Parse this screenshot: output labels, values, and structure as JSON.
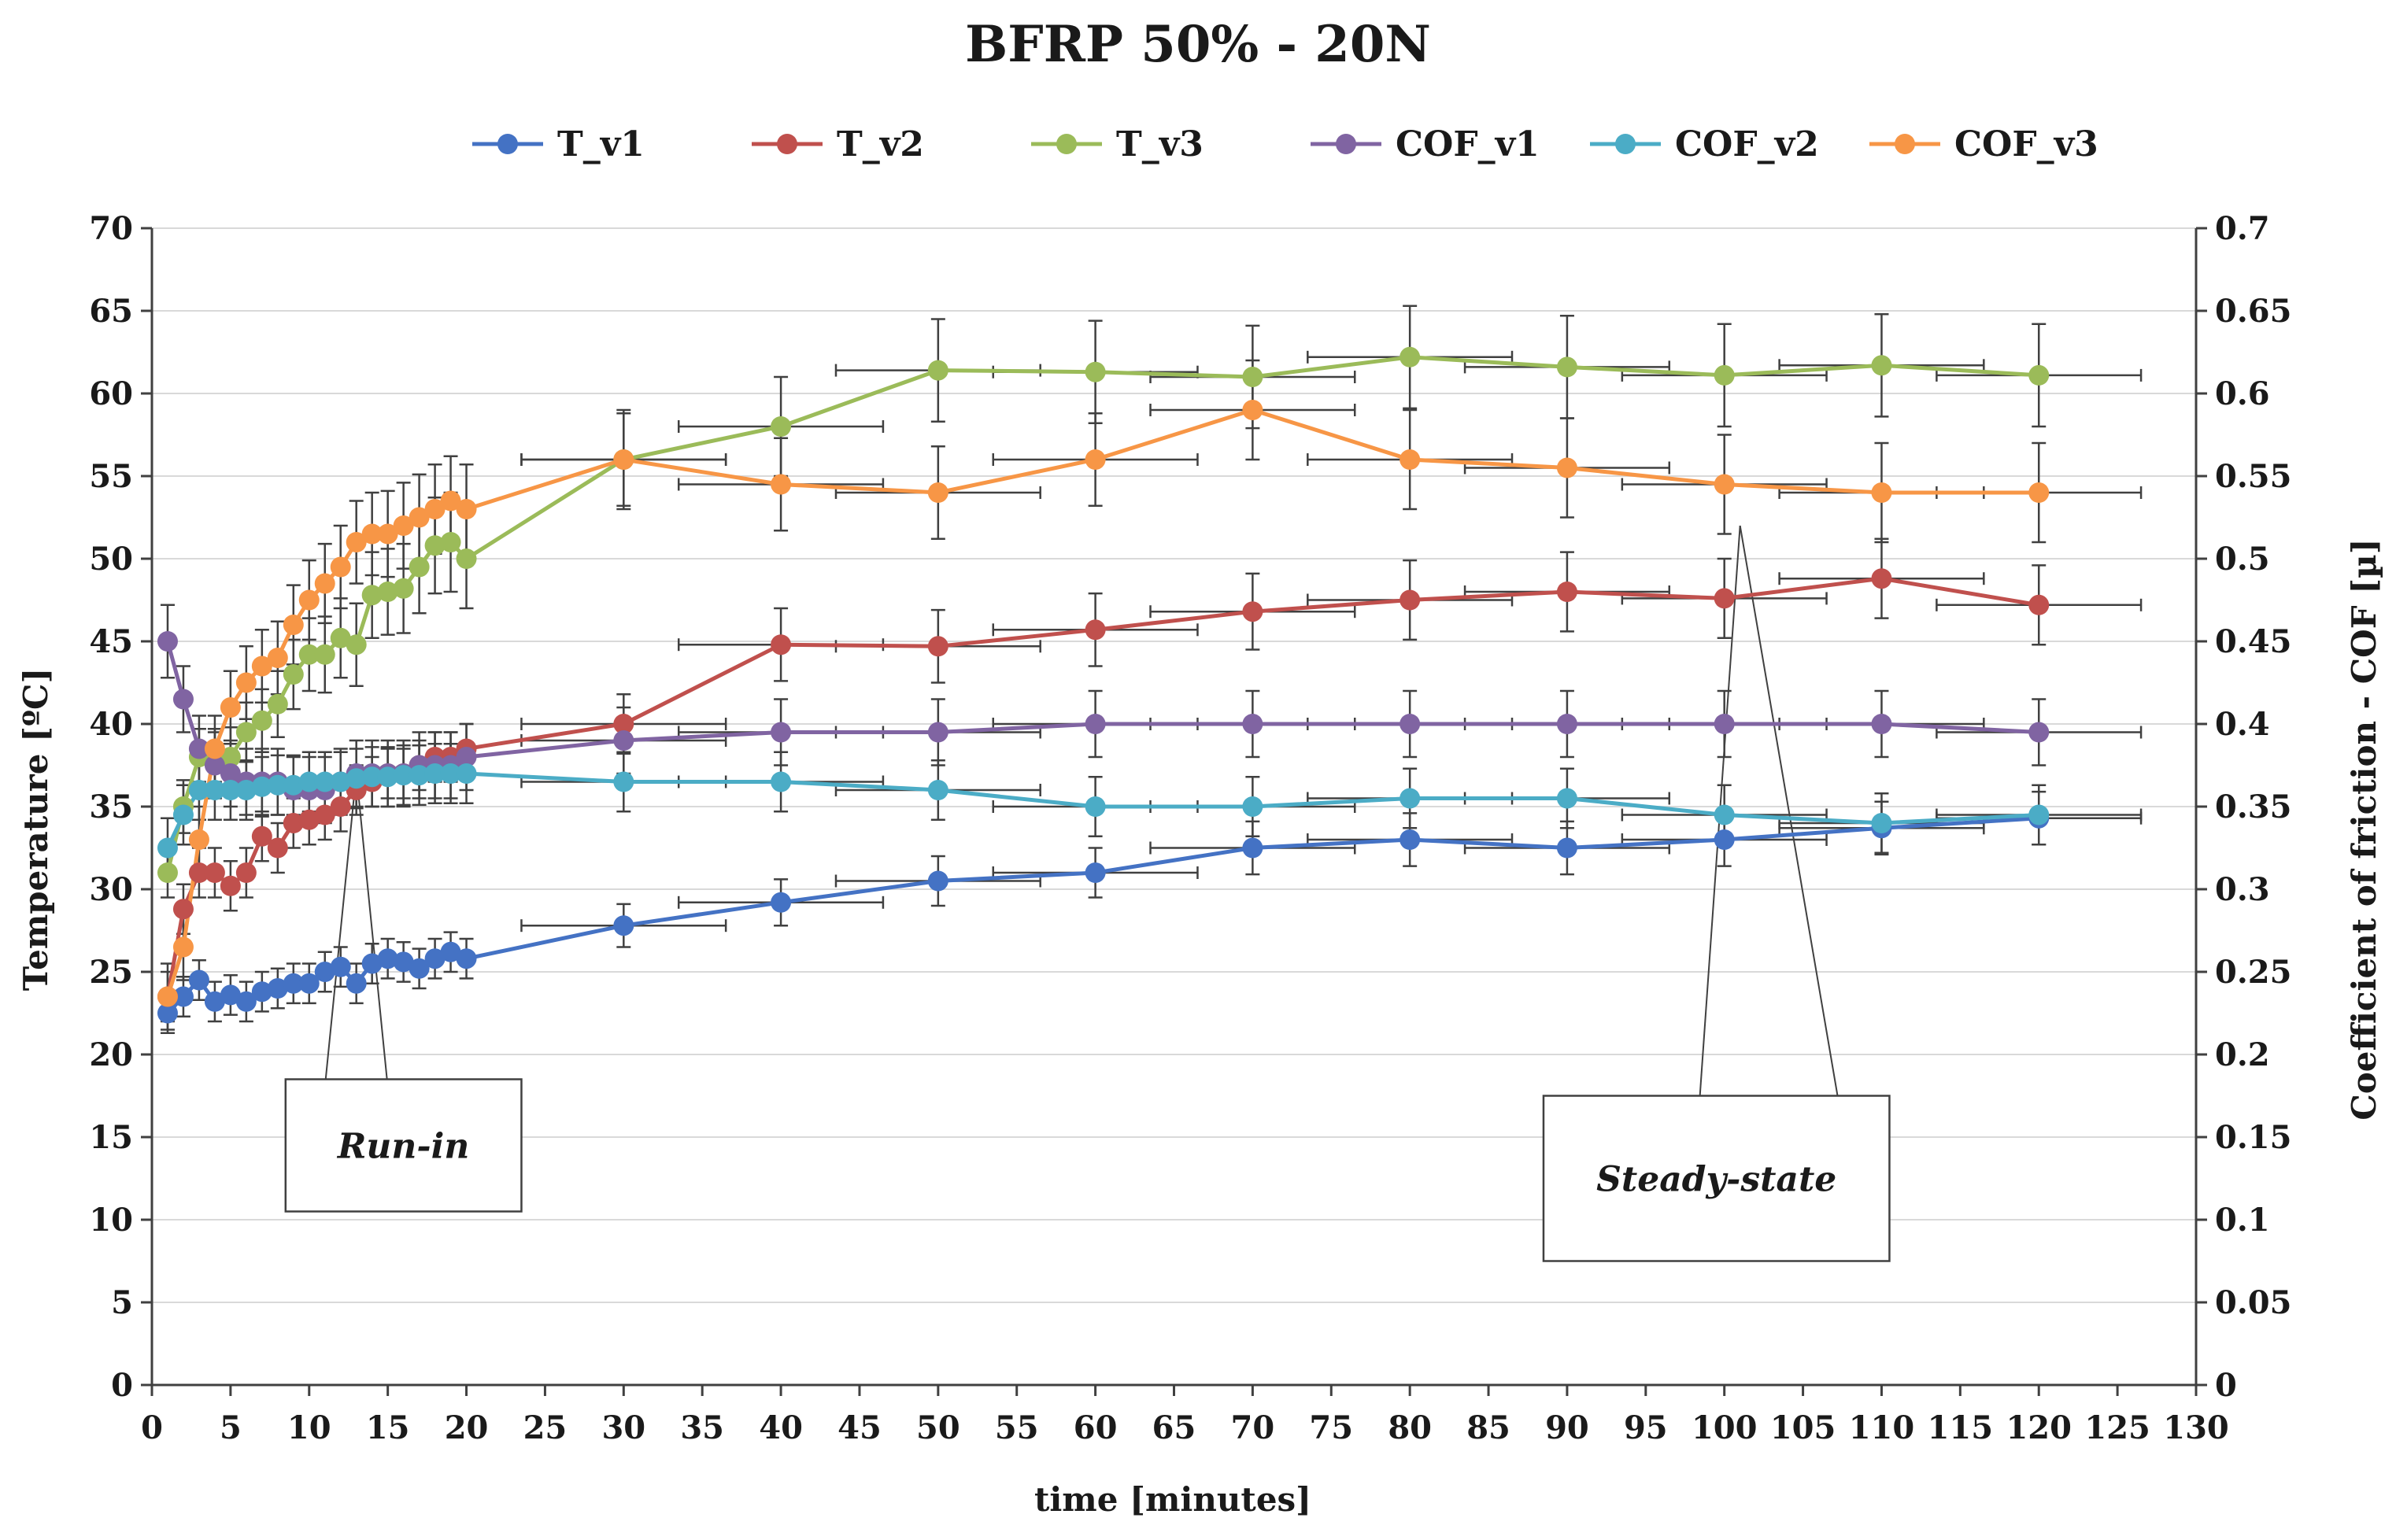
{
  "chart_data": {
    "type": "line",
    "title": "BFRP 50% - 20N",
    "xlabel": "time [minutes]",
    "ylabel": "Temperature [ºC]",
    "y2label": "Coefficient of friction - COF [µ]",
    "xlim": [
      0,
      130
    ],
    "ylim": [
      0,
      70
    ],
    "y2lim": [
      0,
      0.7
    ],
    "x_ticks": [
      "0",
      "5",
      "10",
      "15",
      "20",
      "25",
      "30",
      "35",
      "40",
      "45",
      "50",
      "55",
      "60",
      "65",
      "70",
      "75",
      "80",
      "85",
      "90",
      "95",
      "100",
      "105",
      "110",
      "115",
      "120",
      "125",
      "130"
    ],
    "y_ticks": [
      "0",
      "5",
      "10",
      "15",
      "20",
      "25",
      "30",
      "35",
      "40",
      "45",
      "50",
      "55",
      "60",
      "65",
      "70"
    ],
    "y2_ticks": [
      "0",
      "0.05",
      "0.1",
      "0.15",
      "0.2",
      "0.25",
      "0.3",
      "0.35",
      "0.4",
      "0.45",
      "0.5",
      "0.55",
      "0.6",
      "0.65",
      "0.7"
    ],
    "grid": "horizontal",
    "legend_position": "top",
    "series": [
      {
        "name": "T_v1",
        "axis": "left",
        "color": "#4472c4",
        "x": [
          1,
          2,
          3,
          4,
          5,
          6,
          7,
          8,
          9,
          10,
          11,
          12,
          13,
          14,
          15,
          16,
          17,
          18,
          19,
          20,
          30,
          40,
          50,
          60,
          70,
          80,
          90,
          100,
          110,
          120
        ],
        "y": [
          22.5,
          23.5,
          24.5,
          23.2,
          23.6,
          23.2,
          23.8,
          24.0,
          24.3,
          24.3,
          25.0,
          25.3,
          24.3,
          25.5,
          25.8,
          25.6,
          25.2,
          25.8,
          26.2,
          25.8,
          27.8,
          29.2,
          30.5,
          31.0,
          32.5,
          33.0,
          32.5,
          33.0,
          33.7,
          34.3
        ],
        "err": [
          1.2,
          1.2,
          1.2,
          1.2,
          1.2,
          1.2,
          1.2,
          1.2,
          1.2,
          1.2,
          1.2,
          1.2,
          1.2,
          1.2,
          1.2,
          1.2,
          1.2,
          1.2,
          1.2,
          1.2,
          1.3,
          1.4,
          1.5,
          1.5,
          1.6,
          1.6,
          1.6,
          1.6,
          1.6,
          1.6
        ]
      },
      {
        "name": "T_v2",
        "axis": "left",
        "color": "#c0504d",
        "x": [
          1,
          2,
          3,
          4,
          5,
          6,
          7,
          8,
          9,
          10,
          11,
          12,
          13,
          14,
          15,
          16,
          17,
          18,
          19,
          20,
          30,
          40,
          50,
          60,
          70,
          80,
          90,
          100,
          110,
          120
        ],
        "y": [
          23.5,
          28.8,
          31.0,
          31.0,
          30.2,
          31.0,
          33.2,
          32.5,
          34.0,
          34.2,
          34.5,
          35.0,
          36.0,
          36.5,
          37.0,
          37.0,
          37.5,
          38.0,
          38.0,
          38.5,
          40.0,
          44.8,
          44.7,
          45.7,
          46.8,
          47.5,
          48.0,
          47.6,
          48.8,
          47.2
        ],
        "err": [
          1.5,
          1.5,
          1.5,
          1.5,
          1.5,
          1.5,
          1.5,
          1.5,
          1.5,
          1.5,
          1.5,
          1.5,
          1.5,
          1.5,
          1.5,
          1.5,
          1.5,
          1.5,
          1.5,
          1.5,
          1.8,
          2.2,
          2.2,
          2.2,
          2.3,
          2.4,
          2.4,
          2.4,
          2.4,
          2.4
        ]
      },
      {
        "name": "T_v3",
        "axis": "left",
        "color": "#9bbb59",
        "x": [
          1,
          2,
          3,
          4,
          5,
          6,
          7,
          8,
          9,
          10,
          11,
          12,
          13,
          14,
          15,
          16,
          17,
          18,
          19,
          20,
          30,
          40,
          50,
          60,
          70,
          80,
          90,
          100,
          110,
          120
        ],
        "y": [
          31.0,
          35.0,
          38.0,
          38.0,
          38.0,
          39.5,
          40.2,
          41.2,
          43.0,
          44.2,
          44.2,
          45.2,
          44.8,
          47.8,
          48.0,
          48.2,
          49.5,
          50.8,
          51.0,
          50.0,
          56.0,
          58.0,
          61.4,
          61.3,
          61.0,
          62.2,
          61.6,
          61.1,
          61.7,
          61.1
        ],
        "err": [
          1.5,
          1.6,
          1.7,
          1.7,
          1.8,
          1.8,
          1.9,
          2.0,
          2.1,
          2.2,
          2.3,
          2.4,
          2.5,
          2.6,
          2.6,
          2.7,
          2.8,
          2.9,
          3.0,
          3.0,
          3.0,
          3.0,
          3.1,
          3.1,
          3.1,
          3.1,
          3.1,
          3.1,
          3.1,
          3.1
        ]
      },
      {
        "name": "COF_v1",
        "axis": "right",
        "color": "#8064a2",
        "x": [
          1,
          2,
          3,
          4,
          5,
          6,
          7,
          8,
          9,
          10,
          11,
          12,
          13,
          14,
          15,
          16,
          17,
          18,
          19,
          20,
          30,
          40,
          50,
          60,
          70,
          80,
          90,
          100,
          110,
          120
        ],
        "y": [
          0.45,
          0.415,
          0.385,
          0.375,
          0.37,
          0.365,
          0.365,
          0.365,
          0.36,
          0.36,
          0.36,
          0.365,
          0.37,
          0.37,
          0.37,
          0.37,
          0.375,
          0.375,
          0.375,
          0.38,
          0.39,
          0.395,
          0.395,
          0.4,
          0.4,
          0.4,
          0.4,
          0.4,
          0.4,
          0.395
        ],
        "err": [
          0.022,
          0.02,
          0.02,
          0.02,
          0.02,
          0.02,
          0.02,
          0.02,
          0.02,
          0.02,
          0.02,
          0.02,
          0.02,
          0.02,
          0.02,
          0.02,
          0.02,
          0.02,
          0.02,
          0.02,
          0.02,
          0.02,
          0.02,
          0.02,
          0.02,
          0.02,
          0.02,
          0.02,
          0.02,
          0.02
        ]
      },
      {
        "name": "COF_v2",
        "axis": "right",
        "color": "#4bacc6",
        "x": [
          1,
          2,
          3,
          4,
          5,
          6,
          7,
          8,
          9,
          10,
          11,
          12,
          13,
          14,
          15,
          16,
          17,
          18,
          19,
          20,
          30,
          40,
          50,
          60,
          70,
          80,
          90,
          100,
          110,
          120
        ],
        "y": [
          0.325,
          0.345,
          0.36,
          0.36,
          0.36,
          0.36,
          0.362,
          0.363,
          0.363,
          0.365,
          0.365,
          0.365,
          0.367,
          0.368,
          0.368,
          0.369,
          0.369,
          0.37,
          0.37,
          0.37,
          0.365,
          0.365,
          0.36,
          0.35,
          0.35,
          0.355,
          0.355,
          0.345,
          0.34,
          0.345
        ],
        "err": [
          0.018,
          0.018,
          0.018,
          0.018,
          0.018,
          0.018,
          0.018,
          0.018,
          0.018,
          0.018,
          0.018,
          0.018,
          0.018,
          0.018,
          0.018,
          0.018,
          0.018,
          0.018,
          0.018,
          0.018,
          0.018,
          0.018,
          0.018,
          0.018,
          0.018,
          0.018,
          0.018,
          0.018,
          0.018,
          0.018
        ]
      },
      {
        "name": "COF_v3",
        "axis": "right",
        "color": "#f79646",
        "x": [
          1,
          2,
          3,
          4,
          5,
          6,
          7,
          8,
          9,
          10,
          11,
          12,
          13,
          14,
          15,
          16,
          17,
          18,
          19,
          20,
          30,
          40,
          50,
          60,
          70,
          80,
          90,
          100,
          110,
          120
        ],
        "y": [
          0.235,
          0.265,
          0.33,
          0.385,
          0.41,
          0.425,
          0.435,
          0.44,
          0.46,
          0.475,
          0.485,
          0.495,
          0.51,
          0.515,
          0.515,
          0.52,
          0.525,
          0.53,
          0.535,
          0.53,
          0.56,
          0.545,
          0.54,
          0.56,
          0.59,
          0.56,
          0.555,
          0.545,
          0.54,
          0.54
        ],
        "err": [
          0.02,
          0.02,
          0.02,
          0.02,
          0.022,
          0.022,
          0.022,
          0.022,
          0.024,
          0.024,
          0.024,
          0.025,
          0.025,
          0.025,
          0.026,
          0.026,
          0.026,
          0.027,
          0.027,
          0.027,
          0.028,
          0.028,
          0.028,
          0.028,
          0.03,
          0.03,
          0.03,
          0.03,
          0.03,
          0.03
        ]
      }
    ],
    "annotations": [
      {
        "text": "Run-in",
        "box_x": [
          8.5,
          23.5
        ],
        "box_y": [
          10.5,
          18.5
        ],
        "pointer": [
          13,
          37
        ]
      },
      {
        "text": "Steady-state",
        "box_x": [
          88.5,
          110.5
        ],
        "box_y": [
          7.5,
          17.5
        ],
        "pointer": [
          101,
          52
        ]
      }
    ]
  }
}
